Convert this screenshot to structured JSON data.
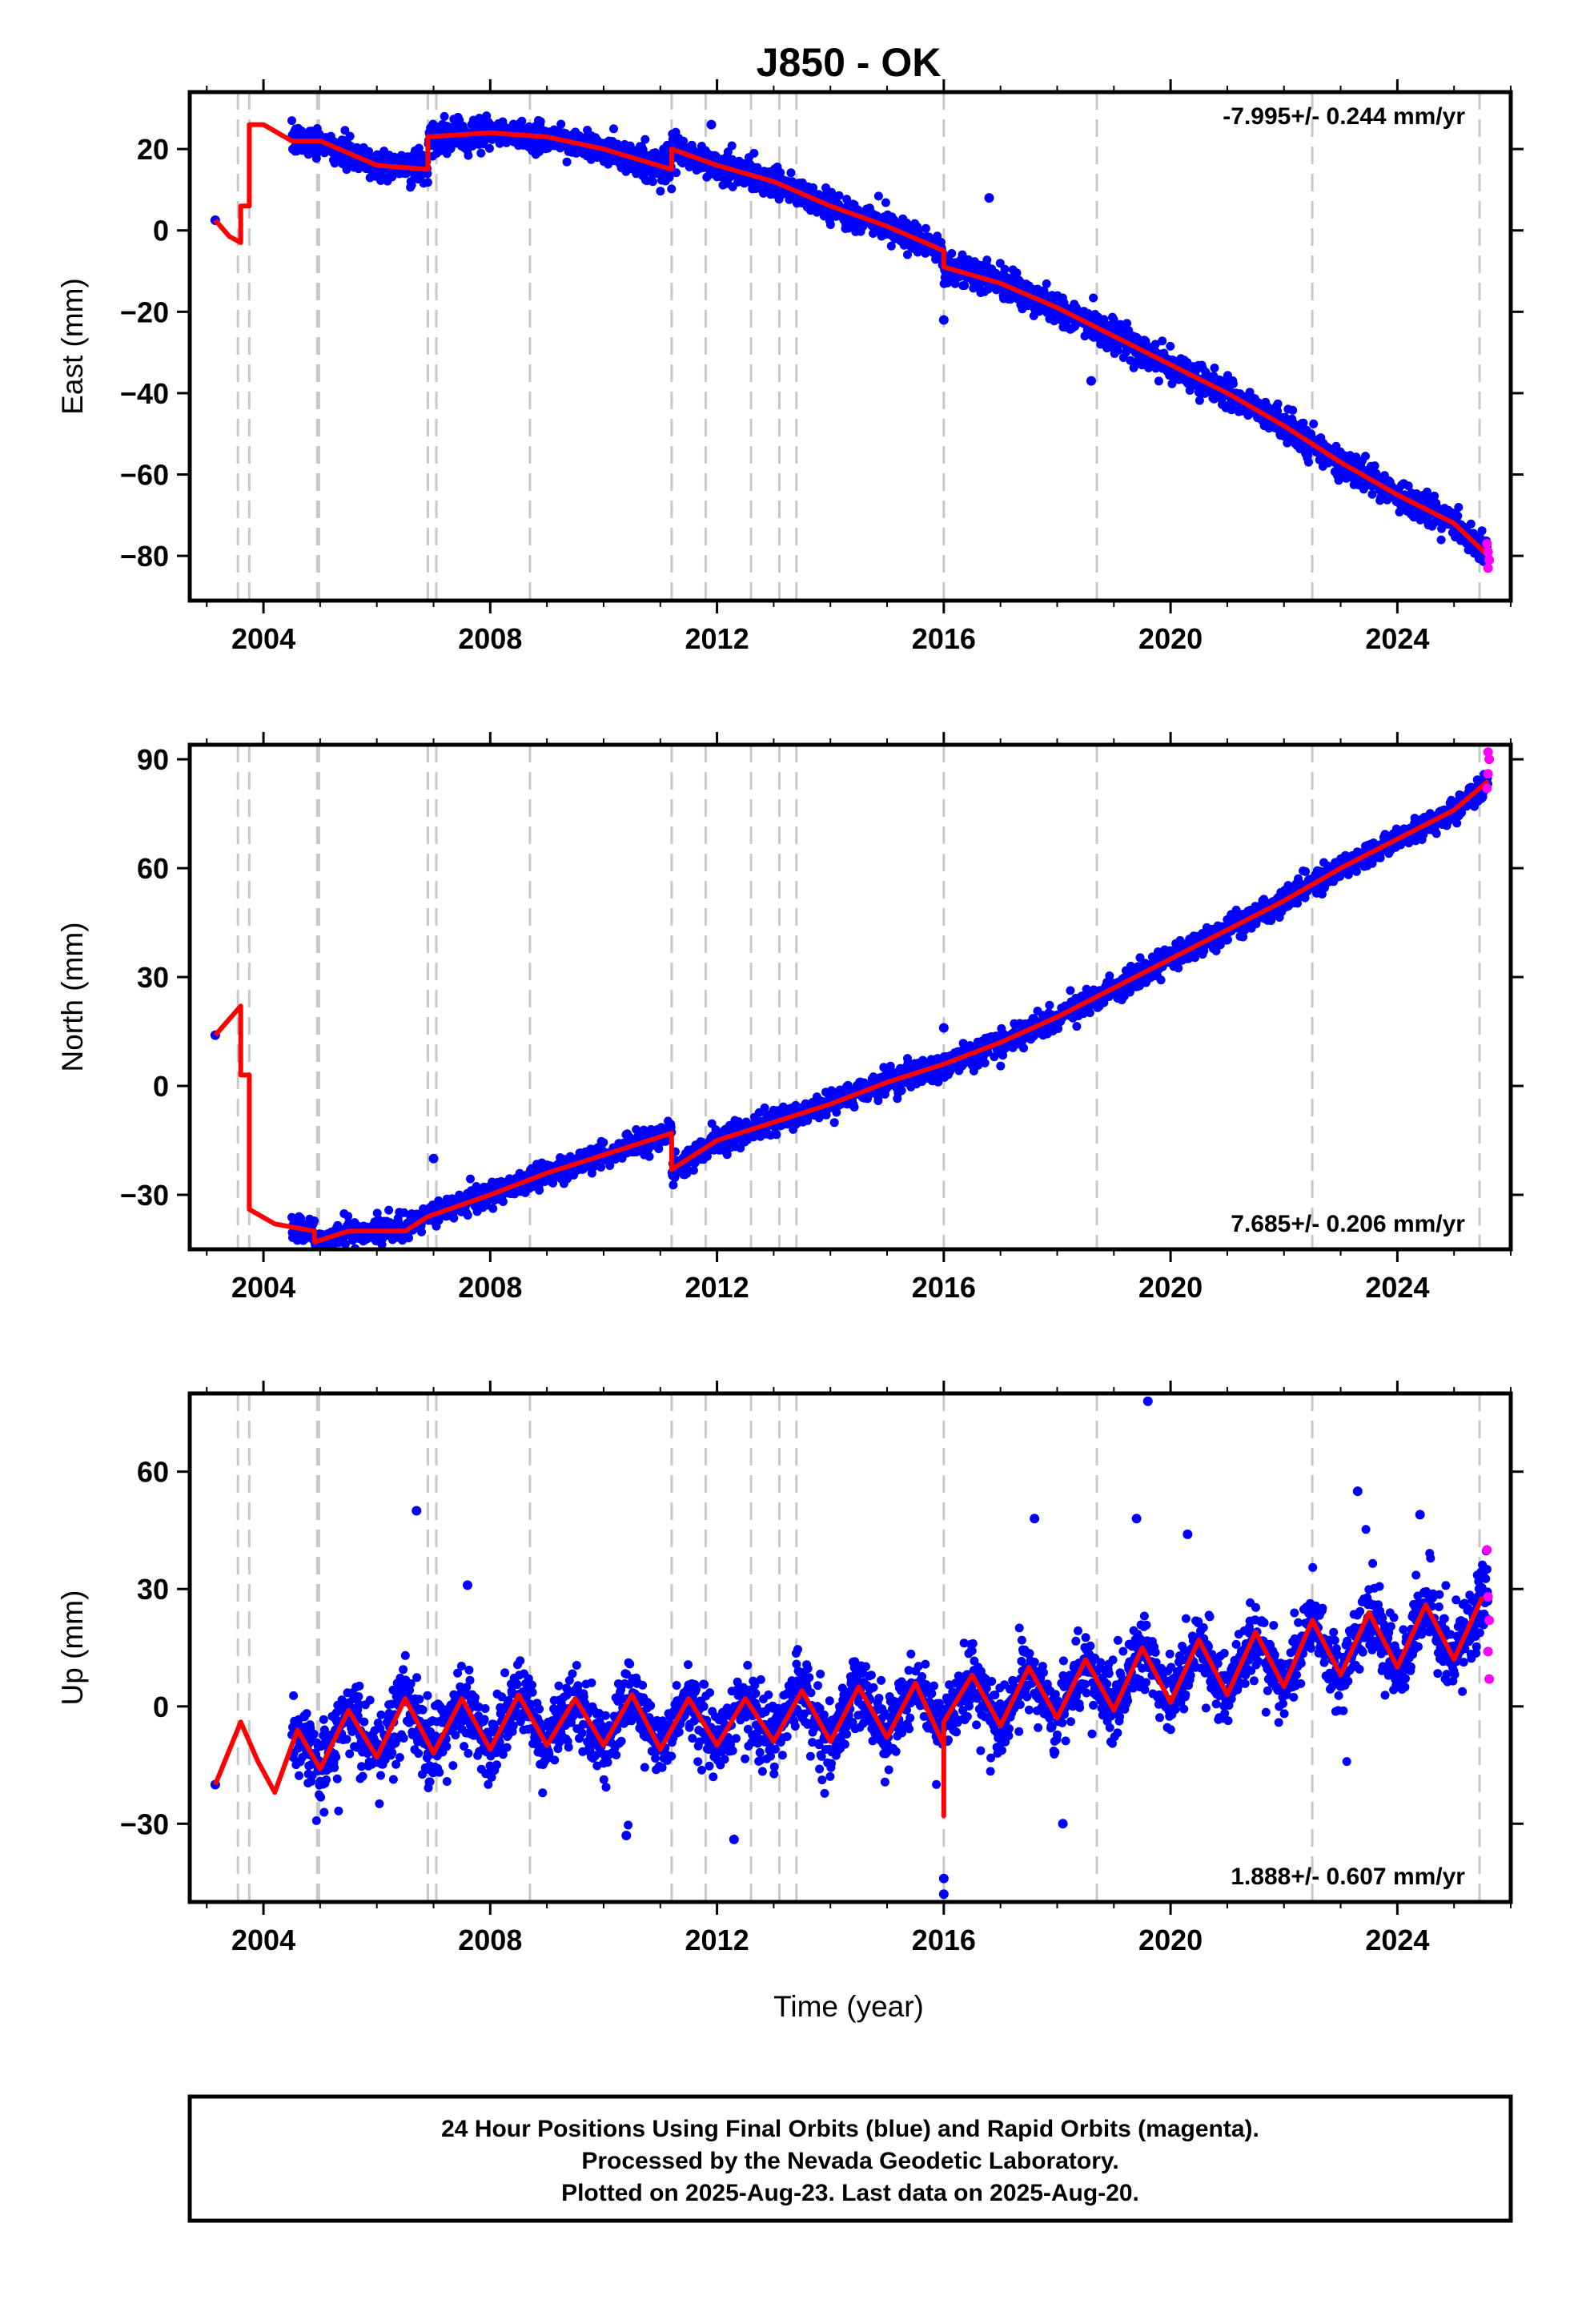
{
  "title": "J850 - OK",
  "footer": {
    "line1": "24 Hour Positions Using Final Orbits (blue) and Rapid Orbits (magenta).",
    "line2": "Processed by the Nevada Geodetic Laboratory.",
    "line3": "Plotted on 2025-Aug-23. Last data on 2025-Aug-20."
  },
  "colors": {
    "final": "#0000ff",
    "rapid": "#ff00ff",
    "model": "#ff0000",
    "event": "#c8c8c8"
  },
  "chart_data": {
    "type": "scatter",
    "x_label": "Time (year)",
    "xlim": [
      2002.7,
      2026.0
    ],
    "x_ticks": [
      2004,
      2008,
      2012,
      2016,
      2020,
      2024
    ],
    "event_lines": [
      2003.55,
      2003.75,
      2004.95,
      2004.98,
      2006.9,
      2007.05,
      2008.7,
      2011.2,
      2011.8,
      2012.6,
      2013.1,
      2013.4,
      2016.0,
      2018.7,
      2022.5,
      2025.45
    ],
    "panels": [
      {
        "component": "East",
        "ylabel": "East (mm)",
        "ylim": [
          -91,
          34
        ],
        "y_ticks": [
          20,
          0,
          -20,
          -40,
          -60,
          -80
        ],
        "rate": "-7.995+/- 0.244 mm/yr",
        "rate_position": "top-right",
        "seasonal_amp": 2.0,
        "scatter_sd": 1.8,
        "model_series": [
          [
            2003.15,
            2.5
          ],
          [
            2003.4,
            -1.5
          ],
          [
            2003.6,
            -3
          ],
          [
            2003.6,
            6
          ],
          [
            2003.75,
            6
          ],
          [
            2003.75,
            26
          ],
          [
            2004.0,
            26
          ],
          [
            2004.5,
            22
          ],
          [
            2005.0,
            22
          ],
          [
            2006.0,
            16
          ],
          [
            2006.9,
            15
          ],
          [
            2006.9,
            23
          ],
          [
            2008.0,
            24
          ],
          [
            2009.0,
            23
          ],
          [
            2010.0,
            20
          ],
          [
            2011.2,
            15
          ],
          [
            2011.2,
            20
          ],
          [
            2012.0,
            16
          ],
          [
            2013.0,
            12
          ],
          [
            2014.0,
            6
          ],
          [
            2015.0,
            1
          ],
          [
            2016.0,
            -5
          ],
          [
            2016.0,
            -9
          ],
          [
            2017.0,
            -13
          ],
          [
            2018.0,
            -19
          ],
          [
            2019.0,
            -26
          ],
          [
            2020.0,
            -33
          ],
          [
            2021.0,
            -40
          ],
          [
            2022.0,
            -48
          ],
          [
            2023.0,
            -57
          ],
          [
            2024.0,
            -65
          ],
          [
            2025.0,
            -72
          ],
          [
            2025.6,
            -80
          ]
        ],
        "data_range": [
          2004.5,
          2025.6
        ],
        "outliers": [
          [
            2016.0,
            -22
          ],
          [
            2016.8,
            8
          ],
          [
            2011.9,
            26
          ],
          [
            2018.6,
            -37
          ]
        ],
        "rapid_points": [
          [
            2025.58,
            -77
          ],
          [
            2025.6,
            -79
          ],
          [
            2025.62,
            -81
          ],
          [
            2025.6,
            -83
          ]
        ]
      },
      {
        "component": "North",
        "ylabel": "North (mm)",
        "ylim": [
          -45,
          94
        ],
        "y_ticks": [
          90,
          60,
          30,
          0,
          -30
        ],
        "rate": "7.685+/- 0.206 mm/yr",
        "rate_position": "bottom-right",
        "seasonal_amp": 1.2,
        "scatter_sd": 1.6,
        "model_series": [
          [
            2003.15,
            14
          ],
          [
            2003.6,
            22
          ],
          [
            2003.6,
            3
          ],
          [
            2003.75,
            3
          ],
          [
            2003.75,
            -34
          ],
          [
            2004.2,
            -38
          ],
          [
            2004.9,
            -40
          ],
          [
            2004.9,
            -43
          ],
          [
            2005.5,
            -40
          ],
          [
            2006.5,
            -40
          ],
          [
            2006.9,
            -36
          ],
          [
            2008.0,
            -30
          ],
          [
            2009.0,
            -24
          ],
          [
            2010.0,
            -19
          ],
          [
            2011.2,
            -13
          ],
          [
            2011.2,
            -23
          ],
          [
            2012.0,
            -15
          ],
          [
            2013.0,
            -10
          ],
          [
            2014.0,
            -5
          ],
          [
            2015.0,
            1
          ],
          [
            2016.0,
            6
          ],
          [
            2017.0,
            12
          ],
          [
            2018.0,
            19
          ],
          [
            2019.0,
            27
          ],
          [
            2020.0,
            35
          ],
          [
            2021.0,
            43
          ],
          [
            2022.0,
            51
          ],
          [
            2023.0,
            60
          ],
          [
            2024.0,
            68
          ],
          [
            2025.0,
            76
          ],
          [
            2025.6,
            84
          ]
        ],
        "data_range": [
          2004.5,
          2025.6
        ],
        "outliers": [
          [
            2007.0,
            -20
          ],
          [
            2016.0,
            16
          ]
        ],
        "rapid_points": [
          [
            2025.58,
            82
          ],
          [
            2025.6,
            86
          ],
          [
            2025.62,
            90
          ],
          [
            2025.6,
            92
          ]
        ]
      },
      {
        "component": "Up",
        "ylabel": "Up (mm)",
        "ylim": [
          -50,
          80
        ],
        "y_ticks": [
          60,
          30,
          0,
          -30
        ],
        "rate": "1.888+/- 0.607 mm/yr",
        "rate_position": "bottom-right",
        "seasonal_amp": 8.0,
        "scatter_sd": 4.5,
        "model_series": [
          [
            2003.15,
            -20
          ],
          [
            2003.6,
            -4
          ],
          [
            2003.9,
            -14
          ],
          [
            2004.2,
            -22
          ],
          [
            2004.6,
            -6
          ],
          [
            2005.0,
            -16
          ],
          [
            2005.5,
            -1
          ],
          [
            2006.0,
            -13
          ],
          [
            2006.5,
            2
          ],
          [
            2007.0,
            -12
          ],
          [
            2007.5,
            2
          ],
          [
            2008.0,
            -11
          ],
          [
            2008.5,
            3
          ],
          [
            2009.0,
            -10
          ],
          [
            2009.5,
            2
          ],
          [
            2010.0,
            -10
          ],
          [
            2010.5,
            3
          ],
          [
            2011.0,
            -11
          ],
          [
            2011.5,
            2
          ],
          [
            2012.0,
            -10
          ],
          [
            2012.5,
            2
          ],
          [
            2013.0,
            -9
          ],
          [
            2013.5,
            4
          ],
          [
            2014.0,
            -9
          ],
          [
            2014.5,
            5
          ],
          [
            2015.0,
            -8
          ],
          [
            2015.5,
            6
          ],
          [
            2016.0,
            -10
          ],
          [
            2016.0,
            -28
          ],
          [
            2016.0,
            -4
          ],
          [
            2016.5,
            8
          ],
          [
            2017.0,
            -5
          ],
          [
            2017.5,
            10
          ],
          [
            2018.0,
            -3
          ],
          [
            2018.5,
            12
          ],
          [
            2019.0,
            -1
          ],
          [
            2019.5,
            15
          ],
          [
            2020.0,
            1
          ],
          [
            2020.5,
            17
          ],
          [
            2021.0,
            3
          ],
          [
            2021.5,
            19
          ],
          [
            2022.0,
            5
          ],
          [
            2022.5,
            22
          ],
          [
            2023.0,
            8
          ],
          [
            2023.5,
            24
          ],
          [
            2024.0,
            10
          ],
          [
            2024.5,
            26
          ],
          [
            2025.0,
            12
          ],
          [
            2025.5,
            28
          ]
        ],
        "data_range": [
          2004.5,
          2025.6
        ],
        "outliers": [
          [
            2006.7,
            50
          ],
          [
            2007.6,
            31
          ],
          [
            2016.0,
            -48
          ],
          [
            2016.0,
            -44
          ],
          [
            2019.6,
            78
          ],
          [
            2017.6,
            48
          ],
          [
            2019.4,
            48
          ],
          [
            2023.3,
            55
          ],
          [
            2024.4,
            49
          ],
          [
            2020.3,
            44
          ],
          [
            2012.3,
            -34
          ],
          [
            2010.4,
            -33
          ],
          [
            2018.1,
            -30
          ]
        ],
        "rapid_points": [
          [
            2025.58,
            40
          ],
          [
            2025.6,
            28
          ],
          [
            2025.62,
            22
          ],
          [
            2025.6,
            14
          ],
          [
            2025.62,
            7
          ]
        ]
      }
    ]
  }
}
